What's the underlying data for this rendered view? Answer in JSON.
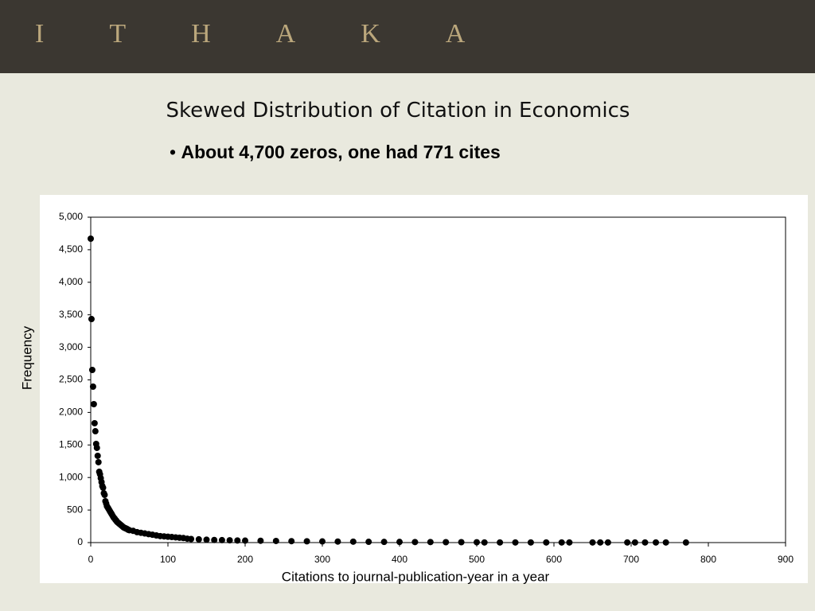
{
  "header": {
    "brand": "ITHAKA"
  },
  "slide": {
    "title": "Skewed Distribution of Citation in Economics",
    "bullet": "About 4,700 zeros, one had 771 cites"
  },
  "chart_data": {
    "type": "scatter",
    "x_label": "Citations to journal-publication-year in a year",
    "y_label": "Frequency",
    "color": "#000000",
    "x": [
      0,
      1,
      2,
      3,
      4,
      5,
      6,
      7,
      8,
      9,
      10,
      11,
      12,
      13,
      14,
      15,
      16,
      17,
      18,
      19,
      20,
      21,
      22,
      23,
      24,
      25,
      26,
      27,
      28,
      29,
      30,
      31,
      32,
      33,
      34,
      35,
      36,
      37,
      38,
      39,
      40,
      41,
      42,
      43,
      44,
      45,
      46,
      47,
      48,
      49,
      50,
      55,
      60,
      65,
      70,
      75,
      80,
      85,
      90,
      95,
      100,
      105,
      110,
      115,
      120,
      125,
      130,
      140,
      150,
      160,
      170,
      180,
      190,
      200,
      220,
      240,
      260,
      280,
      300,
      320,
      340,
      360,
      380,
      400,
      420,
      440,
      460,
      480,
      500,
      510,
      530,
      550,
      570,
      590,
      610,
      620,
      650,
      660,
      670,
      695,
      705,
      718,
      732,
      745,
      771
    ],
    "values": [
      4670,
      3435,
      2653,
      2396,
      2127,
      1834,
      1711,
      1516,
      1455,
      1333,
      1235,
      1088,
      1051,
      990,
      929,
      868,
      843,
      758,
      733,
      636,
      600,
      560,
      540,
      520,
      500,
      480,
      460,
      440,
      420,
      400,
      380,
      370,
      350,
      340,
      320,
      310,
      300,
      290,
      280,
      270,
      260,
      250,
      240,
      230,
      225,
      220,
      215,
      210,
      200,
      195,
      190,
      180,
      160,
      150,
      140,
      130,
      120,
      110,
      100,
      95,
      90,
      85,
      80,
      75,
      70,
      60,
      55,
      50,
      45,
      40,
      38,
      35,
      32,
      30,
      28,
      25,
      22,
      20,
      18,
      16,
      14,
      12,
      10,
      10,
      8,
      8,
      6,
      6,
      5,
      2,
      2,
      2,
      2,
      2,
      2,
      2,
      2,
      2,
      2,
      2,
      2,
      2,
      2,
      2,
      1
    ],
    "xlim": [
      0,
      900
    ],
    "ylim": [
      0,
      5000
    ],
    "xticks": [
      0,
      100,
      200,
      300,
      400,
      500,
      600,
      700,
      800,
      900
    ],
    "yticks": [
      0,
      500,
      {
        "value": 1000,
        "label": "1,000"
      },
      {
        "value": 1500,
        "label": "1,500"
      },
      {
        "value": 2000,
        "label": "2,000"
      },
      {
        "value": 2500,
        "label": "2,500"
      },
      {
        "value": 3000,
        "label": "3,000"
      },
      {
        "value": 3500,
        "label": "3,500"
      },
      {
        "value": 4000,
        "label": "4,000"
      },
      {
        "value": 4500,
        "label": "4,500"
      },
      {
        "value": 5000,
        "label": "5,000"
      }
    ],
    "grid": false
  }
}
